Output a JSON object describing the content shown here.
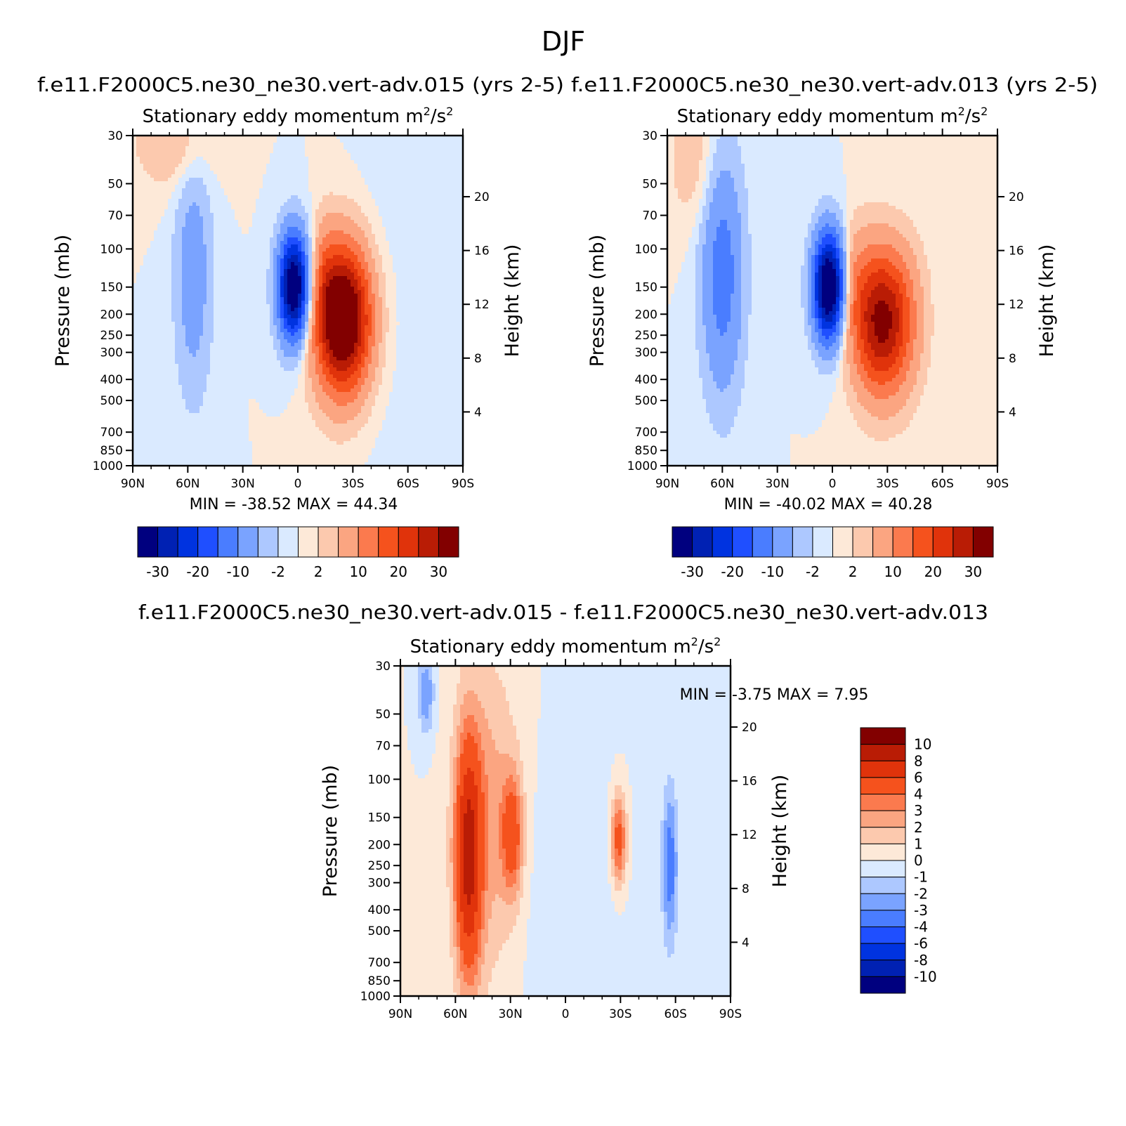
{
  "figure": {
    "title": "DJF",
    "case1": "f.e11.F2000C5.ne30_ne30.vert-adv.015 (yrs 2-5)",
    "case2": "f.e11.F2000C5.ne30_ne30.vert-adv.013 (yrs 2-5)",
    "diff_title": "f.e11.F2000C5.ne30_ne30.vert-adv.015 - f.e11.F2000C5.ne30_ne30.vert-adv.013"
  },
  "palettes": {
    "main": [
      "#00007f",
      "#0021b3",
      "#0033e0",
      "#1f4fff",
      "#4a7dff",
      "#7aa3ff",
      "#adc8ff",
      "#daeaff",
      "#fde9d8",
      "#fcc9ae",
      "#fba581",
      "#fb7a4e",
      "#f5521d",
      "#e0330b",
      "#b91c05",
      "#820000"
    ],
    "diff": [
      "#00007f",
      "#0021b3",
      "#0033e0",
      "#1f4fff",
      "#4a7dff",
      "#7aa3ff",
      "#adc8ff",
      "#daeaff",
      "#fde9d8",
      "#fcc9ae",
      "#fba581",
      "#fb7a4e",
      "#f5521d",
      "#e0330b",
      "#b91c05",
      "#820000"
    ]
  },
  "chart_data": [
    {
      "type": "heatmap",
      "subtitle": "Stationary eddy momentum",
      "units": {
        "base": "m",
        "exp1": "2",
        "mid": "/s",
        "exp2": "2"
      },
      "xlabel": "",
      "ylabel": "Pressure (mb)",
      "ylabel_right": "Height (km)",
      "x_ticks": [
        "90N",
        "60N",
        "30N",
        "0",
        "30S",
        "60S",
        "90S"
      ],
      "y_ticks": [
        "30",
        "50",
        "70",
        "100",
        "150",
        "200",
        "250",
        "300",
        "400",
        "500",
        "700",
        "850",
        "1000"
      ],
      "y_right_ticks": [
        "20",
        "16",
        "12",
        "8",
        "4"
      ],
      "y_scale": "log",
      "min_label": "MIN =",
      "min_value": "-38.52",
      "max_label": "MAX =",
      "max_value": "44.34",
      "colorbar": {
        "orientation": "horizontal",
        "labels": [
          "-30",
          "-20",
          "-10",
          "-2",
          "2",
          "10",
          "20",
          "30"
        ]
      },
      "features": [
        {
          "lat": -25,
          "p": 210,
          "amp": 44.34,
          "slat": 11,
          "sz": 0.55
        },
        {
          "lat": 2,
          "p": 150,
          "amp": -38.52,
          "slat": 6,
          "sz": 0.4
        },
        {
          "lat": 57,
          "p": 130,
          "amp": -8,
          "slat": 7,
          "sz": 0.9
        },
        {
          "lat": -37,
          "p": 200,
          "amp": -3.5,
          "slat": 12,
          "sz": 0.8
        },
        {
          "lat": -15,
          "p": 130,
          "amp": 4.5,
          "slat": 4,
          "sz": 0.4
        },
        {
          "lat": 68,
          "p": 32,
          "amp": 5,
          "slat": 15,
          "sz": 0.35
        }
      ]
    },
    {
      "type": "heatmap",
      "subtitle": "Stationary eddy momentum",
      "units": {
        "base": "m",
        "exp1": "2",
        "mid": "/s",
        "exp2": "2"
      },
      "xlabel": "",
      "ylabel": "Pressure (mb)",
      "ylabel_right": "Height (km)",
      "x_ticks": [
        "90N",
        "60N",
        "30N",
        "0",
        "30S",
        "60S",
        "90S"
      ],
      "y_ticks": [
        "30",
        "50",
        "70",
        "100",
        "150",
        "200",
        "250",
        "300",
        "400",
        "500",
        "700",
        "850",
        "1000"
      ],
      "y_right_ticks": [
        "20",
        "16",
        "12",
        "8",
        "4"
      ],
      "y_scale": "log",
      "min_label": "MIN =",
      "min_value": "-40.02",
      "max_label": "MAX =",
      "max_value": "40.28",
      "colorbar": {
        "orientation": "horizontal",
        "labels": [
          "-30",
          "-20",
          "-10",
          "-2",
          "2",
          "10",
          "20",
          "30"
        ]
      },
      "features": [
        {
          "lat": -28,
          "p": 210,
          "amp": 40.28,
          "slat": 11,
          "sz": 0.55
        },
        {
          "lat": 2,
          "p": 150,
          "amp": -40.02,
          "slat": 6,
          "sz": 0.4
        },
        {
          "lat": 60,
          "p": 130,
          "amp": -13,
          "slat": 8,
          "sz": 0.9
        },
        {
          "lat": -30,
          "p": 190,
          "amp": -8,
          "slat": 8,
          "sz": 0.6
        },
        {
          "lat": -12,
          "p": 140,
          "amp": 4.5,
          "slat": 4,
          "sz": 0.4
        },
        {
          "lat": 75,
          "p": 40,
          "amp": 4,
          "slat": 10,
          "sz": 0.5
        }
      ]
    },
    {
      "type": "heatmap",
      "subtitle": "Stationary eddy momentum",
      "units": {
        "base": "m",
        "exp1": "2",
        "mid": "/s",
        "exp2": "2"
      },
      "xlabel": "",
      "ylabel": "Pressure (mb)",
      "ylabel_right": "Height (km)",
      "x_ticks": [
        "90N",
        "60N",
        "30N",
        "0",
        "30S",
        "60S",
        "90S"
      ],
      "y_ticks": [
        "30",
        "50",
        "70",
        "100",
        "150",
        "200",
        "250",
        "300",
        "400",
        "500",
        "700",
        "850",
        "1000"
      ],
      "y_right_ticks": [
        "20",
        "16",
        "12",
        "8",
        "4"
      ],
      "y_scale": "log",
      "min_label": "MIN =",
      "min_value": "-3.75",
      "max_label": "MAX =",
      "max_value": "7.95",
      "colorbar": {
        "orientation": "vertical",
        "labels": [
          "10",
          "8",
          "6",
          "4",
          "3",
          "2",
          "1",
          "0",
          "-1",
          "-2",
          "-3",
          "-4",
          "-6",
          "-8",
          "-10"
        ]
      },
      "features": [
        {
          "lat": 53,
          "p": 230,
          "amp": 7.95,
          "slat": 5,
          "sz": 0.9
        },
        {
          "lat": 29,
          "p": 180,
          "amp": 4.5,
          "slat": 4,
          "sz": 0.45
        },
        {
          "lat": -29,
          "p": 190,
          "amp": 5,
          "slat": 3,
          "sz": 0.35
        },
        {
          "lat": -57,
          "p": 250,
          "amp": -3.75,
          "slat": 3,
          "sz": 0.6
        },
        {
          "lat": 76,
          "p": 40,
          "amp": -3,
          "slat": 3,
          "sz": 0.3
        },
        {
          "lat": 42,
          "p": 150,
          "amp": 2.5,
          "slat": 12,
          "sz": 1.2
        },
        {
          "lat": -5,
          "p": 400,
          "amp": -0.8,
          "slat": 20,
          "sz": 1.2
        }
      ]
    }
  ]
}
